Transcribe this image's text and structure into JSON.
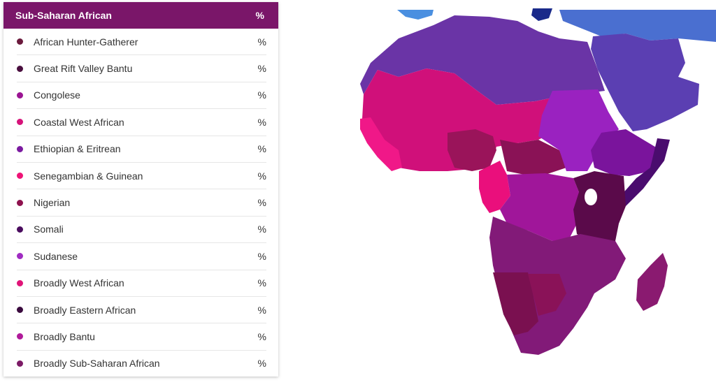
{
  "panel": {
    "title": "Sub-Saharan African",
    "pct_header": "%",
    "rows": [
      {
        "label": "African Hunter-Gatherer",
        "pct": "%",
        "color": "#6b1a3d"
      },
      {
        "label": "Great Rift Valley Bantu",
        "pct": "%",
        "color": "#4a0f3f"
      },
      {
        "label": "Congolese",
        "pct": "%",
        "color": "#9b1493"
      },
      {
        "label": "Coastal West African",
        "pct": "%",
        "color": "#d6137a"
      },
      {
        "label": "Ethiopian & Eritrean",
        "pct": "%",
        "color": "#7b1aa0"
      },
      {
        "label": "Senegambian & Guinean",
        "pct": "%",
        "color": "#ee1377"
      },
      {
        "label": "Nigerian",
        "pct": "%",
        "color": "#8e124e"
      },
      {
        "label": "Somali",
        "pct": "%",
        "color": "#4a0c5e"
      },
      {
        "label": "Sudanese",
        "pct": "%",
        "color": "#a02cc2"
      },
      {
        "label": "Broadly West African",
        "pct": "%",
        "color": "#e01478"
      },
      {
        "label": "Broadly Eastern African",
        "pct": "%",
        "color": "#3a0a3e"
      },
      {
        "label": "Broadly Bantu",
        "pct": "%",
        "color": "#b01a9a"
      },
      {
        "label": "Broadly Sub-Saharan African",
        "pct": "%",
        "color": "#7c1a66"
      }
    ]
  },
  "map": {
    "colors": {
      "north_africa": "#6a34a6",
      "middle_east": "#5b3fb2",
      "europe_blue": "#4a6fd0",
      "west_africa": "#d0107a",
      "coastal_west": "#f01888",
      "nigeria": "#9a145a",
      "sudan": "#9a22c0",
      "ethiopia": "#7a149c",
      "somalia": "#4a0c6e",
      "great_rift": "#5a0a4a",
      "congo": "#a0169a",
      "southern": "#821a78",
      "namibia": "#7a1050",
      "madagascar": "#8a1a70"
    }
  }
}
